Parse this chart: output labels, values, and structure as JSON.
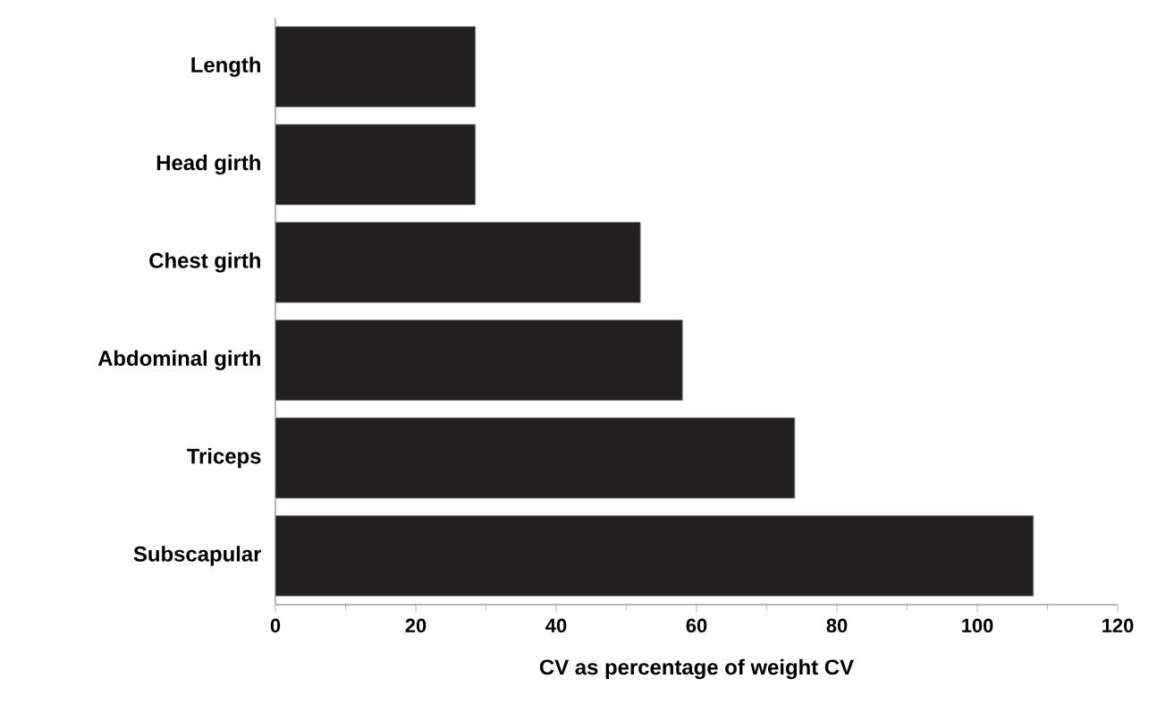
{
  "chart_data": {
    "type": "bar",
    "orientation": "horizontal",
    "xlabel": "CV as percentage of weight CV",
    "categories": [
      "Length",
      "Head girth",
      "Chest girth",
      "Abdominal girth",
      "Triceps",
      "Subscapular"
    ],
    "values": [
      28.5,
      28.5,
      52,
      58,
      74,
      108
    ],
    "color": "#231f20",
    "xlim": [
      0,
      120
    ],
    "xticks": [
      0,
      20,
      40,
      60,
      80,
      100,
      120
    ],
    "grid": false
  }
}
